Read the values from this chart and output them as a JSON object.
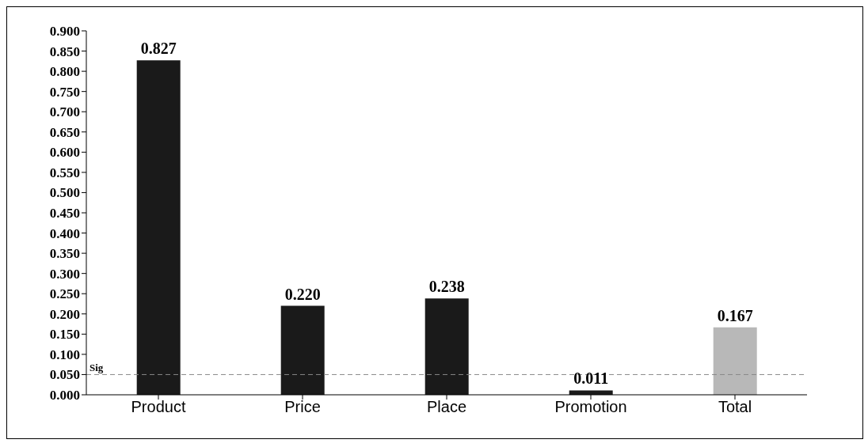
{
  "chart_data": {
    "type": "bar",
    "categories": [
      "Product",
      "Price",
      "Place",
      "Promotion",
      "Total"
    ],
    "values": [
      0.827,
      0.22,
      0.238,
      0.011,
      0.167
    ],
    "colors": [
      "#1a1a1a",
      "#1a1a1a",
      "#1a1a1a",
      "#1a1a1a",
      "#b8b8b8"
    ],
    "value_labels": [
      "0.827",
      "0.220",
      "0.238",
      "0.011",
      "0.167"
    ],
    "ylim": [
      0,
      0.9
    ],
    "yticks": [
      {
        "value": 0,
        "label": "0.000"
      },
      {
        "value": 0.05,
        "label": "0.050"
      },
      {
        "value": 0.1,
        "label": "0.100"
      },
      {
        "value": 0.15,
        "label": "0.150"
      },
      {
        "value": 0.2,
        "label": "0.200"
      },
      {
        "value": 0.25,
        "label": "0.250"
      },
      {
        "value": 0.3,
        "label": "0.300"
      },
      {
        "value": 0.35,
        "label": "0.350"
      },
      {
        "value": 0.4,
        "label": "0.400"
      },
      {
        "value": 0.45,
        "label": "0.450"
      },
      {
        "value": 0.5,
        "label": "0.500"
      },
      {
        "value": 0.55,
        "label": "0.550"
      },
      {
        "value": 0.6,
        "label": "0.600"
      },
      {
        "value": 0.65,
        "label": "0.650"
      },
      {
        "value": 0.7,
        "label": "0.700"
      },
      {
        "value": 0.75,
        "label": "0.750"
      },
      {
        "value": 0.8,
        "label": "0.800"
      },
      {
        "value": 0.85,
        "label": "0.850"
      },
      {
        "value": 0.9,
        "label": "0.900"
      }
    ],
    "ref_lines": [
      {
        "axis": "y",
        "value": 0.05,
        "label": "Sig",
        "color": "#888888",
        "line_style": "dashed"
      }
    ],
    "grid": false
  }
}
